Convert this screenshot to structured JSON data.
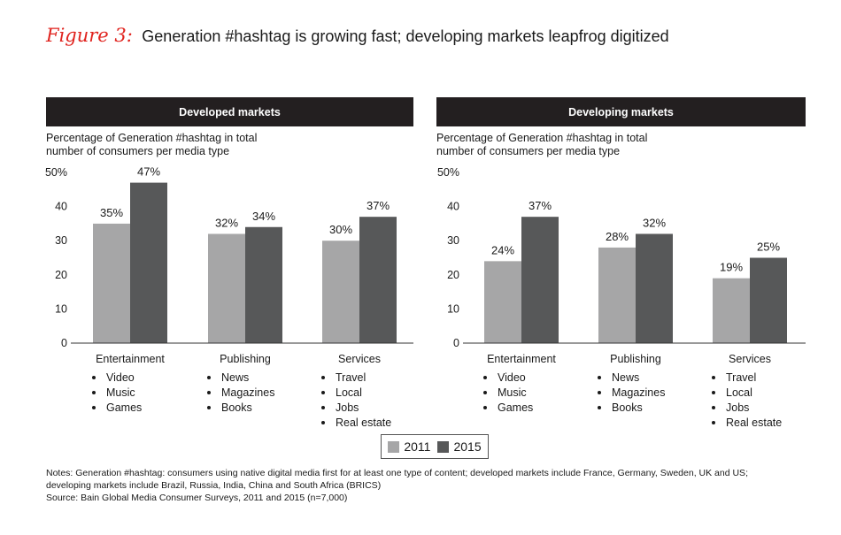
{
  "figure": {
    "label": "Figure 3:",
    "title": "Generation #hashtag is growing fast; developing markets leapfrog digitized"
  },
  "colors": {
    "series_2011": "#a6a6a7",
    "series_2015": "#575859",
    "header_bg": "#231f20"
  },
  "chart_data": [
    {
      "type": "bar",
      "title": "Developed markets",
      "ylabel": [
        "Percentage of Generation #hashtag in total",
        "number of consumers per media type"
      ],
      "yticks": [
        "0",
        "10",
        "20",
        "30",
        "40",
        "50%"
      ],
      "ylim": [
        0,
        50
      ],
      "categories": [
        "Entertainment",
        "Publishing",
        "Services"
      ],
      "subitems": [
        [
          "Video",
          "Music",
          "Games"
        ],
        [
          "News",
          "Magazines",
          "Books"
        ],
        [
          "Travel",
          "Local",
          "Jobs",
          "Real estate"
        ]
      ],
      "series": [
        {
          "name": "2011",
          "values": [
            35,
            32,
            30
          ],
          "labels": [
            "35%",
            "32%",
            "30%"
          ]
        },
        {
          "name": "2015",
          "values": [
            47,
            34,
            37
          ],
          "labels": [
            "47%",
            "34%",
            "37%"
          ]
        }
      ]
    },
    {
      "type": "bar",
      "title": "Developing markets",
      "ylabel": [
        "Percentage of Generation #hashtag in total",
        "number of consumers per media type"
      ],
      "yticks": [
        "0",
        "10",
        "20",
        "30",
        "40",
        "50%"
      ],
      "ylim": [
        0,
        50
      ],
      "categories": [
        "Entertainment",
        "Publishing",
        "Services"
      ],
      "subitems": [
        [
          "Video",
          "Music",
          "Games"
        ],
        [
          "News",
          "Magazines",
          "Books"
        ],
        [
          "Travel",
          "Local",
          "Jobs",
          "Real estate"
        ]
      ],
      "series": [
        {
          "name": "2011",
          "values": [
            24,
            28,
            19
          ],
          "labels": [
            "24%",
            "28%",
            "19%"
          ]
        },
        {
          "name": "2015",
          "values": [
            37,
            32,
            25
          ],
          "labels": [
            "37%",
            "32%",
            "25%"
          ]
        }
      ]
    }
  ],
  "legend": {
    "items": [
      "2011",
      "2015"
    ]
  },
  "notes": {
    "line1": "Notes: Generation #hashtag: consumers using native digital media first for at least one type of content; developed markets include France, Germany, Sweden, UK and US;",
    "line2": "developing markets include Brazil, Russia, India, China and South Africa (BRICS)",
    "line3": "Source: Bain Global Media Consumer Surveys, 2011 and 2015 (n=7,000)"
  }
}
